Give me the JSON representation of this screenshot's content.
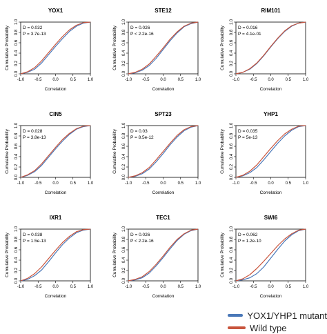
{
  "colors": {
    "mutant": "#4a78b8",
    "wild": "#c8543c"
  },
  "legend": {
    "mutant_label": "YOX1/YHP1 mutant",
    "wild_label": "Wild type"
  },
  "chart_data": [
    {
      "type": "line",
      "title": "YOX1",
      "stats": [
        "D = 0.032",
        "P = 3.7e-13"
      ],
      "xlabel": "Correlation",
      "ylabel": "Cumulative Probability",
      "xlim": [
        -1.0,
        1.0
      ],
      "ylim": [
        0.0,
        1.0
      ],
      "xticks": [
        "-1.0",
        "-0.5",
        "0.0",
        "0.5",
        "1.0"
      ],
      "yticks": [
        "0.0",
        "0.2",
        "0.4",
        "0.6",
        "0.8",
        "1.0"
      ],
      "series": [
        {
          "name": "YOX1/YHP1 mutant",
          "x": [
            -1.0,
            -0.8,
            -0.6,
            -0.4,
            -0.2,
            0.0,
            0.2,
            0.4,
            0.6,
            0.8,
            1.0
          ],
          "y": [
            0.0,
            0.03,
            0.09,
            0.21,
            0.37,
            0.53,
            0.68,
            0.82,
            0.92,
            0.98,
            1.0
          ]
        },
        {
          "name": "Wild type",
          "x": [
            -1.0,
            -0.8,
            -0.6,
            -0.4,
            -0.2,
            0.0,
            0.2,
            0.4,
            0.6,
            0.8,
            1.0
          ],
          "y": [
            0.0,
            0.04,
            0.12,
            0.25,
            0.41,
            0.57,
            0.72,
            0.85,
            0.94,
            0.99,
            1.0
          ]
        }
      ]
    },
    {
      "type": "line",
      "title": "STE12",
      "stats": [
        "D = 0.026",
        "P < 2.2e-16"
      ],
      "xlabel": "Correlation",
      "ylabel": "Cumulative Probability",
      "xlim": [
        -1.0,
        1.0
      ],
      "ylim": [
        0.0,
        1.0
      ],
      "xticks": [
        "-1.0",
        "-0.5",
        "0.0",
        "0.5",
        "1.0"
      ],
      "yticks": [
        "0.0",
        "0.2",
        "0.4",
        "0.6",
        "0.8",
        "1.0"
      ],
      "series": [
        {
          "name": "YOX1/YHP1 mutant",
          "x": [
            -1.0,
            -0.8,
            -0.6,
            -0.4,
            -0.2,
            0.0,
            0.2,
            0.4,
            0.6,
            0.8,
            1.0
          ],
          "y": [
            0.0,
            0.02,
            0.07,
            0.16,
            0.3,
            0.47,
            0.64,
            0.79,
            0.91,
            0.97,
            1.0
          ]
        },
        {
          "name": "Wild type",
          "x": [
            -1.0,
            -0.8,
            -0.6,
            -0.4,
            -0.2,
            0.0,
            0.2,
            0.4,
            0.6,
            0.8,
            1.0
          ],
          "y": [
            0.0,
            0.03,
            0.09,
            0.19,
            0.34,
            0.5,
            0.67,
            0.81,
            0.92,
            0.98,
            1.0
          ]
        }
      ]
    },
    {
      "type": "line",
      "title": "RIM101",
      "stats": [
        "D = 0.016",
        "P = 4.1e-01"
      ],
      "xlabel": "Correlation",
      "ylabel": "Cumulative Probability",
      "xlim": [
        -1.0,
        1.0
      ],
      "ylim": [
        0.0,
        1.0
      ],
      "xticks": [
        "-1.0",
        "-0.5",
        "0.0",
        "0.5",
        "1.0"
      ],
      "yticks": [
        "0.0",
        "0.2",
        "0.4",
        "0.6",
        "0.8",
        "1.0"
      ],
      "series": [
        {
          "name": "YOX1/YHP1 mutant",
          "x": [
            -1.0,
            -0.8,
            -0.6,
            -0.4,
            -0.2,
            0.0,
            0.2,
            0.4,
            0.6,
            0.8,
            1.0
          ],
          "y": [
            0.0,
            0.03,
            0.09,
            0.2,
            0.35,
            0.52,
            0.68,
            0.82,
            0.92,
            0.98,
            1.0
          ]
        },
        {
          "name": "Wild type",
          "x": [
            -1.0,
            -0.8,
            -0.6,
            -0.4,
            -0.2,
            0.0,
            0.2,
            0.4,
            0.6,
            0.8,
            1.0
          ],
          "y": [
            0.0,
            0.03,
            0.1,
            0.21,
            0.36,
            0.53,
            0.69,
            0.83,
            0.93,
            0.98,
            1.0
          ]
        }
      ]
    },
    {
      "type": "line",
      "title": "CIN5",
      "stats": [
        "D = 0.028",
        "P = 3.8e-13"
      ],
      "xlabel": "Correlation",
      "ylabel": "Cumulative Probability",
      "xlim": [
        -1.0,
        1.0
      ],
      "ylim": [
        0.0,
        1.0
      ],
      "xticks": [
        "-1.0",
        "-0.5",
        "0.0",
        "0.5",
        "1.0"
      ],
      "yticks": [
        "0.0",
        "0.2",
        "0.4",
        "0.6",
        "0.8",
        "1.0"
      ],
      "series": [
        {
          "name": "YOX1/YHP1 mutant",
          "x": [
            -1.0,
            -0.8,
            -0.6,
            -0.4,
            -0.2,
            0.0,
            0.2,
            0.4,
            0.6,
            0.8,
            1.0
          ],
          "y": [
            0.0,
            0.04,
            0.11,
            0.23,
            0.39,
            0.55,
            0.7,
            0.83,
            0.93,
            0.98,
            1.0
          ]
        },
        {
          "name": "Wild type",
          "x": [
            -1.0,
            -0.8,
            -0.6,
            -0.4,
            -0.2,
            0.0,
            0.2,
            0.4,
            0.6,
            0.8,
            1.0
          ],
          "y": [
            0.0,
            0.05,
            0.13,
            0.26,
            0.42,
            0.58,
            0.73,
            0.85,
            0.94,
            0.99,
            1.0
          ]
        }
      ]
    },
    {
      "type": "line",
      "title": "SPT23",
      "stats": [
        "D = 0.03",
        "P = 8.5e-12"
      ],
      "xlabel": "Correlation",
      "ylabel": "Cumulative Probability",
      "xlim": [
        -1.0,
        1.0
      ],
      "ylim": [
        0.0,
        1.0
      ],
      "xticks": [
        "-1.0",
        "-0.5",
        "0.0",
        "0.5",
        "1.0"
      ],
      "yticks": [
        "0.0",
        "0.2",
        "0.4",
        "0.6",
        "0.8",
        "1.0"
      ],
      "series": [
        {
          "name": "YOX1/YHP1 mutant",
          "x": [
            -1.0,
            -0.8,
            -0.6,
            -0.4,
            -0.2,
            0.0,
            0.2,
            0.4,
            0.6,
            0.8,
            1.0
          ],
          "y": [
            0.0,
            0.02,
            0.07,
            0.16,
            0.3,
            0.46,
            0.63,
            0.78,
            0.9,
            0.97,
            1.0
          ]
        },
        {
          "name": "Wild type",
          "x": [
            -1.0,
            -0.8,
            -0.6,
            -0.4,
            -0.2,
            0.0,
            0.2,
            0.4,
            0.6,
            0.8,
            1.0
          ],
          "y": [
            0.0,
            0.03,
            0.09,
            0.19,
            0.34,
            0.5,
            0.66,
            0.81,
            0.92,
            0.98,
            1.0
          ]
        }
      ]
    },
    {
      "type": "line",
      "title": "YHP1",
      "stats": [
        "D = 0.035",
        "P = 5e-13"
      ],
      "xlabel": "Correlation",
      "ylabel": "Cumulative Probability",
      "xlim": [
        -1.0,
        1.0
      ],
      "ylim": [
        0.0,
        1.0
      ],
      "xticks": [
        "-1.0",
        "-0.5",
        "0.0",
        "0.5",
        "1.0"
      ],
      "yticks": [
        "0.0",
        "0.2",
        "0.4",
        "0.6",
        "0.8",
        "1.0"
      ],
      "series": [
        {
          "name": "YOX1/YHP1 mutant",
          "x": [
            -1.0,
            -0.8,
            -0.6,
            -0.4,
            -0.2,
            0.0,
            0.2,
            0.4,
            0.6,
            0.8,
            1.0
          ],
          "y": [
            0.0,
            0.03,
            0.09,
            0.19,
            0.34,
            0.5,
            0.66,
            0.8,
            0.91,
            0.98,
            1.0
          ]
        },
        {
          "name": "Wild type",
          "x": [
            -1.0,
            -0.8,
            -0.6,
            -0.4,
            -0.2,
            0.0,
            0.2,
            0.4,
            0.6,
            0.8,
            1.0
          ],
          "y": [
            0.0,
            0.04,
            0.12,
            0.24,
            0.4,
            0.56,
            0.71,
            0.84,
            0.93,
            0.99,
            1.0
          ]
        }
      ]
    },
    {
      "type": "line",
      "title": "IXR1",
      "stats": [
        "D = 0.038",
        "P = 1.5e-13"
      ],
      "xlabel": "Correlation",
      "ylabel": "Cumulative Probability",
      "xlim": [
        -1.0,
        1.0
      ],
      "ylim": [
        0.0,
        1.0
      ],
      "xticks": [
        "-1.0",
        "-0.5",
        "0.0",
        "0.5",
        "1.0"
      ],
      "yticks": [
        "0.0",
        "0.2",
        "0.4",
        "0.6",
        "0.8",
        "1.0"
      ],
      "series": [
        {
          "name": "YOX1/YHP1 mutant",
          "x": [
            -1.0,
            -0.8,
            -0.6,
            -0.4,
            -0.2,
            0.0,
            0.2,
            0.4,
            0.6,
            0.8,
            1.0
          ],
          "y": [
            0.0,
            0.03,
            0.1,
            0.21,
            0.37,
            0.54,
            0.7,
            0.83,
            0.93,
            0.98,
            1.0
          ]
        },
        {
          "name": "Wild type",
          "x": [
            -1.0,
            -0.8,
            -0.6,
            -0.4,
            -0.2,
            0.0,
            0.2,
            0.4,
            0.6,
            0.8,
            1.0
          ],
          "y": [
            0.0,
            0.05,
            0.14,
            0.27,
            0.43,
            0.59,
            0.74,
            0.86,
            0.95,
            0.99,
            1.0
          ]
        }
      ]
    },
    {
      "type": "line",
      "title": "TEC1",
      "stats": [
        "D = 0.026",
        "P < 2.2e-16"
      ],
      "xlabel": "Correlation",
      "ylabel": "Cumulative Probability",
      "xlim": [
        -1.0,
        1.0
      ],
      "ylim": [
        0.0,
        1.0
      ],
      "xticks": [
        "-1.0",
        "-0.5",
        "0.0",
        "0.5",
        "1.0"
      ],
      "yticks": [
        "0.0",
        "0.2",
        "0.4",
        "0.6",
        "0.8",
        "1.0"
      ],
      "series": [
        {
          "name": "YOX1/YHP1 mutant",
          "x": [
            -1.0,
            -0.8,
            -0.6,
            -0.4,
            -0.2,
            0.0,
            0.2,
            0.4,
            0.6,
            0.8,
            1.0
          ],
          "y": [
            0.0,
            0.02,
            0.06,
            0.15,
            0.29,
            0.45,
            0.62,
            0.78,
            0.9,
            0.97,
            1.0
          ]
        },
        {
          "name": "Wild type",
          "x": [
            -1.0,
            -0.8,
            -0.6,
            -0.4,
            -0.2,
            0.0,
            0.2,
            0.4,
            0.6,
            0.8,
            1.0
          ],
          "y": [
            0.0,
            0.03,
            0.08,
            0.18,
            0.32,
            0.48,
            0.65,
            0.8,
            0.91,
            0.98,
            1.0
          ]
        }
      ]
    },
    {
      "type": "line",
      "title": "SWI6",
      "stats": [
        "D = 0.062",
        "P = 1.2e-10"
      ],
      "xlabel": "Correlation",
      "ylabel": "Cumulative Probability",
      "xlim": [
        -1.0,
        1.0
      ],
      "ylim": [
        0.0,
        1.0
      ],
      "xticks": [
        "-1.0",
        "-0.5",
        "0.0",
        "0.5",
        "1.0"
      ],
      "yticks": [
        "0.0",
        "0.2",
        "0.4",
        "0.6",
        "0.8",
        "1.0"
      ],
      "series": [
        {
          "name": "YOX1/YHP1 mutant",
          "x": [
            -1.0,
            -0.8,
            -0.6,
            -0.4,
            -0.2,
            0.0,
            0.2,
            0.4,
            0.6,
            0.8,
            1.0
          ],
          "y": [
            0.0,
            0.02,
            0.06,
            0.14,
            0.27,
            0.44,
            0.61,
            0.77,
            0.89,
            0.97,
            1.0
          ]
        },
        {
          "name": "Wild type",
          "x": [
            -1.0,
            -0.8,
            -0.6,
            -0.4,
            -0.2,
            0.0,
            0.2,
            0.4,
            0.6,
            0.8,
            1.0
          ],
          "y": [
            0.0,
            0.04,
            0.12,
            0.24,
            0.38,
            0.53,
            0.68,
            0.81,
            0.91,
            0.98,
            1.0
          ]
        }
      ]
    }
  ]
}
